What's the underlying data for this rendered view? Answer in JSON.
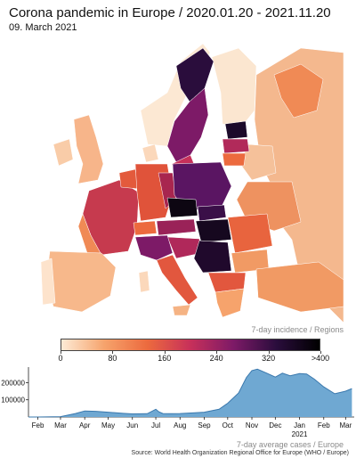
{
  "title": "Corona pandemic in Europe / 2020.01.20 - 2021.11.20",
  "subtitle": "09. March 2021",
  "map_caption": "7-day incidence / Regions",
  "legend": {
    "ticks": [
      "0",
      "80",
      "160",
      "240",
      "320",
      ">400"
    ],
    "values": [
      0,
      80,
      160,
      240,
      320,
      400
    ],
    "colors": [
      "#fdebd6",
      "#f6a36c",
      "#ec6a3e",
      "#c7305a",
      "#7d1a67",
      "#2a0d3c",
      "#000000"
    ]
  },
  "chart_data": {
    "type": "area",
    "x": [
      "2020-01-20",
      "2020-02-01",
      "2020-03-01",
      "2020-03-20",
      "2020-04-01",
      "2020-04-15",
      "2020-05-01",
      "2020-05-20",
      "2020-06-01",
      "2020-06-20",
      "2020-07-01",
      "2020-07-05",
      "2020-07-10",
      "2020-07-20",
      "2020-08-01",
      "2020-08-20",
      "2020-09-01",
      "2020-09-20",
      "2020-10-01",
      "2020-10-15",
      "2020-10-25",
      "2020-11-01",
      "2020-11-08",
      "2020-11-20",
      "2020-12-01",
      "2020-12-10",
      "2020-12-20",
      "2021-01-01",
      "2021-01-10",
      "2021-01-20",
      "2021-02-01",
      "2021-02-15",
      "2021-03-01",
      "2021-03-09"
    ],
    "y": [
      0,
      0,
      2000,
      20000,
      35000,
      33000,
      28000,
      21000,
      18000,
      19000,
      45000,
      30000,
      20000,
      19000,
      20000,
      25000,
      28000,
      45000,
      80000,
      140000,
      230000,
      270000,
      278000,
      255000,
      232000,
      255000,
      240000,
      252000,
      250000,
      220000,
      175000,
      135000,
      150000,
      165000
    ],
    "ylim": [
      0,
      290000
    ],
    "yticks": [
      100000,
      200000
    ],
    "ytick_labels": [
      "100000",
      "200000"
    ],
    "xtick_labels": [
      "Feb",
      "Mar",
      "Apr",
      "May",
      "Jun",
      "Jul",
      "Aug",
      "Sep",
      "Oct",
      "Nov",
      "Dec",
      "Jan",
      "Feb",
      "Mar"
    ],
    "xtick_dates": [
      "2020-02-01",
      "2020-03-01",
      "2020-04-01",
      "2020-05-01",
      "2020-06-01",
      "2020-07-01",
      "2020-08-01",
      "2020-09-01",
      "2020-10-01",
      "2020-11-01",
      "2020-12-01",
      "2021-01-01",
      "2021-02-01",
      "2021-03-01"
    ],
    "year_label": "2021",
    "year_date": "2021-01-01",
    "xlim": [
      "2020-01-20",
      "2021-03-12"
    ],
    "fill_color": "#6fa8d2",
    "line_color": "#3a78ad"
  },
  "ts_caption": "7-day average cases / Europe",
  "source": "Source: World Health Organization Regional Office for Europe (WHO / Europe)"
}
